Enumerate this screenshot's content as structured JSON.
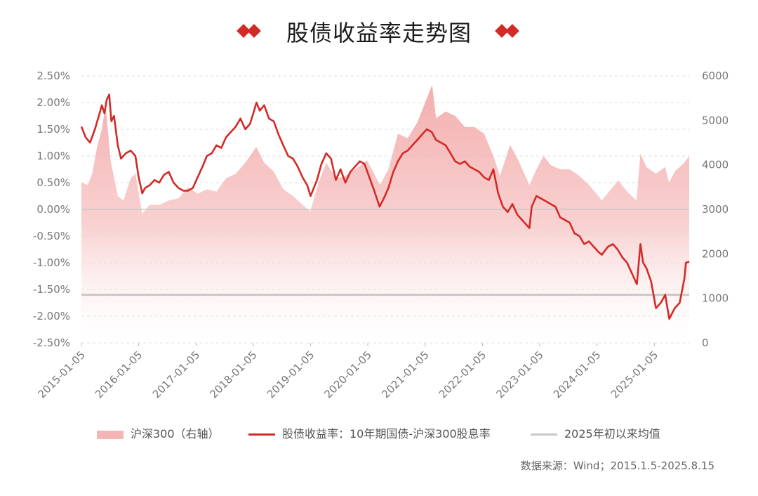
{
  "title": "股债收益率走势图",
  "source": "数据来源：Wind；2015.1.5-2025.8.15",
  "colors": {
    "accent": "#d32a26",
    "area": "#f4b5b5",
    "mean": "#c8c8c8",
    "grid": "#dddddd"
  },
  "legend": {
    "area": "沪深300（右轴）",
    "line": "股债收益率：10年期国债-沪深300股息率",
    "mean": "2025年初以来均值"
  },
  "chart_data": {
    "type": "line",
    "x_range": [
      "2015-01-05",
      "2025-08-15"
    ],
    "x_ticks": [
      "2015-01-05",
      "2016-01-05",
      "2017-01-05",
      "2018-01-05",
      "2019-01-05",
      "2020-01-05",
      "2021-01-05",
      "2022-01-05",
      "2023-01-05",
      "2024-01-05",
      "2025-01-05"
    ],
    "y_left": {
      "ticks": [
        "2.50%",
        "2.00%",
        "1.50%",
        "1.00%",
        "0.50%",
        "0.00%",
        "-0.50%",
        "-1.00%",
        "-1.50%",
        "-2.00%",
        "-2.50%"
      ],
      "range": [
        -2.5,
        2.5
      ]
    },
    "y_right": {
      "ticks": [
        "6000",
        "5000",
        "4000",
        "3000",
        "2000",
        "1000",
        "0"
      ],
      "range": [
        0,
        6000
      ]
    },
    "mean_line": -1.6,
    "series": [
      {
        "name": "股债收益率：10年期国债-沪深300股息率",
        "axis": "left",
        "kind": "line",
        "points": [
          [
            "2015-01-05",
            1.55
          ],
          [
            "2015-02-01",
            1.35
          ],
          [
            "2015-03-01",
            1.25
          ],
          [
            "2015-04-01",
            1.5
          ],
          [
            "2015-05-01",
            1.8
          ],
          [
            "2015-05-15",
            1.95
          ],
          [
            "2015-06-01",
            1.8
          ],
          [
            "2015-06-15",
            2.05
          ],
          [
            "2015-07-01",
            2.15
          ],
          [
            "2015-07-15",
            1.65
          ],
          [
            "2015-08-01",
            1.75
          ],
          [
            "2015-08-25",
            1.2
          ],
          [
            "2015-09-15",
            0.95
          ],
          [
            "2015-10-15",
            1.05
          ],
          [
            "2015-11-15",
            1.1
          ],
          [
            "2015-12-15",
            1.0
          ],
          [
            "2016-01-05",
            0.6
          ],
          [
            "2016-01-28",
            0.3
          ],
          [
            "2016-02-15",
            0.4
          ],
          [
            "2016-03-15",
            0.45
          ],
          [
            "2016-04-15",
            0.55
          ],
          [
            "2016-05-15",
            0.5
          ],
          [
            "2016-06-15",
            0.65
          ],
          [
            "2016-07-15",
            0.7
          ],
          [
            "2016-08-15",
            0.5
          ],
          [
            "2016-09-15",
            0.4
          ],
          [
            "2016-10-15",
            0.35
          ],
          [
            "2016-11-15",
            0.35
          ],
          [
            "2016-12-15",
            0.4
          ],
          [
            "2017-01-15",
            0.6
          ],
          [
            "2017-02-15",
            0.8
          ],
          [
            "2017-03-15",
            1.0
          ],
          [
            "2017-04-15",
            1.05
          ],
          [
            "2017-05-15",
            1.2
          ],
          [
            "2017-06-15",
            1.15
          ],
          [
            "2017-07-15",
            1.35
          ],
          [
            "2017-08-15",
            1.45
          ],
          [
            "2017-09-15",
            1.55
          ],
          [
            "2017-10-15",
            1.7
          ],
          [
            "2017-11-15",
            1.5
          ],
          [
            "2017-12-15",
            1.6
          ],
          [
            "2018-01-05",
            1.8
          ],
          [
            "2018-01-25",
            2.0
          ],
          [
            "2018-02-15",
            1.85
          ],
          [
            "2018-03-15",
            1.95
          ],
          [
            "2018-04-15",
            1.7
          ],
          [
            "2018-05-15",
            1.65
          ],
          [
            "2018-06-15",
            1.4
          ],
          [
            "2018-07-15",
            1.2
          ],
          [
            "2018-08-15",
            1.0
          ],
          [
            "2018-09-15",
            0.95
          ],
          [
            "2018-10-15",
            0.8
          ],
          [
            "2018-11-15",
            0.6
          ],
          [
            "2018-12-15",
            0.45
          ],
          [
            "2019-01-05",
            0.25
          ],
          [
            "2019-02-15",
            0.55
          ],
          [
            "2019-03-15",
            0.85
          ],
          [
            "2019-04-15",
            1.05
          ],
          [
            "2019-05-15",
            0.95
          ],
          [
            "2019-06-15",
            0.55
          ],
          [
            "2019-07-15",
            0.75
          ],
          [
            "2019-08-15",
            0.5
          ],
          [
            "2019-09-15",
            0.7
          ],
          [
            "2019-10-15",
            0.8
          ],
          [
            "2019-11-15",
            0.9
          ],
          [
            "2019-12-15",
            0.85
          ],
          [
            "2020-01-15",
            0.6
          ],
          [
            "2020-02-15",
            0.35
          ],
          [
            "2020-03-20",
            0.05
          ],
          [
            "2020-04-15",
            0.2
          ],
          [
            "2020-05-15",
            0.4
          ],
          [
            "2020-06-15",
            0.7
          ],
          [
            "2020-07-15",
            0.9
          ],
          [
            "2020-08-15",
            1.05
          ],
          [
            "2020-09-15",
            1.1
          ],
          [
            "2020-10-15",
            1.2
          ],
          [
            "2020-11-15",
            1.3
          ],
          [
            "2020-12-15",
            1.4
          ],
          [
            "2021-01-15",
            1.5
          ],
          [
            "2021-02-15",
            1.45
          ],
          [
            "2021-03-15",
            1.3
          ],
          [
            "2021-04-15",
            1.25
          ],
          [
            "2021-05-15",
            1.2
          ],
          [
            "2021-06-15",
            1.05
          ],
          [
            "2021-07-15",
            0.9
          ],
          [
            "2021-08-15",
            0.85
          ],
          [
            "2021-09-15",
            0.9
          ],
          [
            "2021-10-15",
            0.8
          ],
          [
            "2021-11-15",
            0.75
          ],
          [
            "2021-12-15",
            0.7
          ],
          [
            "2022-01-15",
            0.6
          ],
          [
            "2022-02-15",
            0.55
          ],
          [
            "2022-03-15",
            0.75
          ],
          [
            "2022-04-15",
            0.3
          ],
          [
            "2022-05-15",
            0.05
          ],
          [
            "2022-06-15",
            -0.05
          ],
          [
            "2022-07-15",
            0.1
          ],
          [
            "2022-08-15",
            -0.1
          ],
          [
            "2022-09-15",
            -0.2
          ],
          [
            "2022-10-31",
            -0.35
          ],
          [
            "2022-11-15",
            0.05
          ],
          [
            "2022-12-15",
            0.25
          ],
          [
            "2023-01-15",
            0.2
          ],
          [
            "2023-02-15",
            0.15
          ],
          [
            "2023-03-15",
            0.1
          ],
          [
            "2023-04-15",
            0.05
          ],
          [
            "2023-05-15",
            -0.15
          ],
          [
            "2023-06-15",
            -0.2
          ],
          [
            "2023-07-15",
            -0.25
          ],
          [
            "2023-08-15",
            -0.45
          ],
          [
            "2023-09-15",
            -0.5
          ],
          [
            "2023-10-15",
            -0.65
          ],
          [
            "2023-11-15",
            -0.6
          ],
          [
            "2023-12-15",
            -0.7
          ],
          [
            "2024-01-15",
            -0.8
          ],
          [
            "2024-02-05",
            -0.85
          ],
          [
            "2024-03-15",
            -0.7
          ],
          [
            "2024-04-15",
            -0.65
          ],
          [
            "2024-05-15",
            -0.75
          ],
          [
            "2024-06-15",
            -0.9
          ],
          [
            "2024-07-15",
            -1.0
          ],
          [
            "2024-08-15",
            -1.2
          ],
          [
            "2024-09-15",
            -1.4
          ],
          [
            "2024-10-08",
            -0.65
          ],
          [
            "2024-10-25",
            -1.0
          ],
          [
            "2024-11-15",
            -1.1
          ],
          [
            "2024-12-15",
            -1.35
          ],
          [
            "2025-01-15",
            -1.85
          ],
          [
            "2025-02-15",
            -1.75
          ],
          [
            "2025-03-15",
            -1.6
          ],
          [
            "2025-04-10",
            -2.05
          ],
          [
            "2025-05-15",
            -1.85
          ],
          [
            "2025-06-15",
            -1.75
          ],
          [
            "2025-07-15",
            -1.3
          ],
          [
            "2025-07-25",
            -1.0
          ],
          [
            "2025-08-15",
            -0.98
          ]
        ]
      },
      {
        "name": "沪深300（右轴）",
        "axis": "right",
        "kind": "area",
        "points": [
          [
            "2015-01-05",
            3600
          ],
          [
            "2015-02-15",
            3550
          ],
          [
            "2015-03-15",
            3800
          ],
          [
            "2015-04-15",
            4400
          ],
          [
            "2015-05-15",
            4800
          ],
          [
            "2015-06-08",
            5350
          ],
          [
            "2015-07-10",
            4100
          ],
          [
            "2015-08-25",
            3300
          ],
          [
            "2015-09-30",
            3200
          ],
          [
            "2015-11-15",
            3700
          ],
          [
            "2015-12-15",
            3800
          ],
          [
            "2016-01-28",
            2900
          ],
          [
            "2016-03-15",
            3100
          ],
          [
            "2016-05-15",
            3100
          ],
          [
            "2016-07-15",
            3200
          ],
          [
            "2016-09-15",
            3250
          ],
          [
            "2016-11-15",
            3500
          ],
          [
            "2017-01-15",
            3350
          ],
          [
            "2017-03-15",
            3450
          ],
          [
            "2017-05-15",
            3400
          ],
          [
            "2017-07-15",
            3700
          ],
          [
            "2017-09-15",
            3800
          ],
          [
            "2017-11-15",
            4050
          ],
          [
            "2018-01-24",
            4400
          ],
          [
            "2018-03-15",
            4050
          ],
          [
            "2018-05-15",
            3850
          ],
          [
            "2018-07-15",
            3450
          ],
          [
            "2018-09-15",
            3300
          ],
          [
            "2018-10-31",
            3150
          ],
          [
            "2019-01-03",
            2950
          ],
          [
            "2019-02-25",
            3600
          ],
          [
            "2019-04-15",
            4050
          ],
          [
            "2019-06-15",
            3700
          ],
          [
            "2019-08-15",
            3750
          ],
          [
            "2019-10-15",
            3900
          ],
          [
            "2019-12-31",
            4100
          ],
          [
            "2020-03-23",
            3550
          ],
          [
            "2020-05-15",
            3900
          ],
          [
            "2020-07-15",
            4700
          ],
          [
            "2020-09-15",
            4600
          ],
          [
            "2020-11-15",
            4950
          ],
          [
            "2021-02-18",
            5800
          ],
          [
            "2021-03-15",
            5050
          ],
          [
            "2021-05-15",
            5200
          ],
          [
            "2021-07-15",
            5100
          ],
          [
            "2021-09-15",
            4850
          ],
          [
            "2021-11-15",
            4850
          ],
          [
            "2022-01-15",
            4700
          ],
          [
            "2022-03-15",
            4200
          ],
          [
            "2022-04-26",
            3750
          ],
          [
            "2022-06-30",
            4450
          ],
          [
            "2022-08-15",
            4150
          ],
          [
            "2022-10-31",
            3550
          ],
          [
            "2022-12-15",
            3900
          ],
          [
            "2023-01-30",
            4200
          ],
          [
            "2023-03-15",
            4000
          ],
          [
            "2023-05-15",
            3900
          ],
          [
            "2023-07-15",
            3900
          ],
          [
            "2023-09-15",
            3750
          ],
          [
            "2023-11-15",
            3550
          ],
          [
            "2024-02-05",
            3200
          ],
          [
            "2024-04-15",
            3500
          ],
          [
            "2024-05-20",
            3650
          ],
          [
            "2024-07-15",
            3400
          ],
          [
            "2024-09-13",
            3200
          ],
          [
            "2024-10-08",
            4250
          ],
          [
            "2024-11-15",
            3950
          ],
          [
            "2025-01-15",
            3800
          ],
          [
            "2025-03-15",
            3950
          ],
          [
            "2025-04-08",
            3600
          ],
          [
            "2025-05-15",
            3850
          ],
          [
            "2025-07-15",
            4050
          ],
          [
            "2025-08-15",
            4200
          ]
        ]
      }
    ],
    "mean_name": "2025年初以来均值"
  }
}
